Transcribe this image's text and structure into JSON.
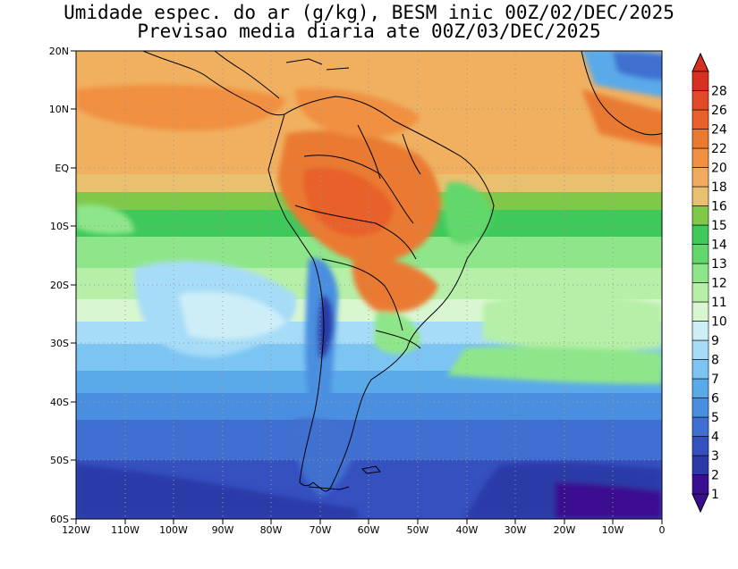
{
  "title_line1": "Umidade espec. do ar (g/kg), BESM inic 00Z/02/DEC/2025",
  "title_line2": "Previsao media diaria ate 00Z/03/DEC/2025",
  "lat_labels": [
    "20N",
    "10N",
    "EQ",
    "10S",
    "20S",
    "30S",
    "40S",
    "50S",
    "60S"
  ],
  "lon_labels": [
    "120W",
    "110W",
    "100W",
    "90W",
    "80W",
    "70W",
    "60W",
    "50W",
    "40W",
    "30W",
    "20W",
    "10W",
    "0"
  ],
  "colorbar": {
    "labels": [
      "1",
      "2",
      "3",
      "4",
      "5",
      "6",
      "7",
      "8",
      "9",
      "10",
      "11",
      "12",
      "13",
      "14",
      "15",
      "16",
      "18",
      "20",
      "22",
      "24",
      "26",
      "28"
    ],
    "colors": [
      "#3a0f8f",
      "#2b3aa8",
      "#3550bf",
      "#3f6fd0",
      "#4a8ee0",
      "#5aaaea",
      "#7cc4f2",
      "#a6dcf7",
      "#cdeef7",
      "#d8f7d0",
      "#b6f0a8",
      "#8fe68a",
      "#62d86c",
      "#3fc95a",
      "#80c84a",
      "#e8c070",
      "#f2aa60",
      "#f09040",
      "#ea7a30",
      "#e8602a",
      "#e04a28",
      "#d83020"
    ]
  }
}
